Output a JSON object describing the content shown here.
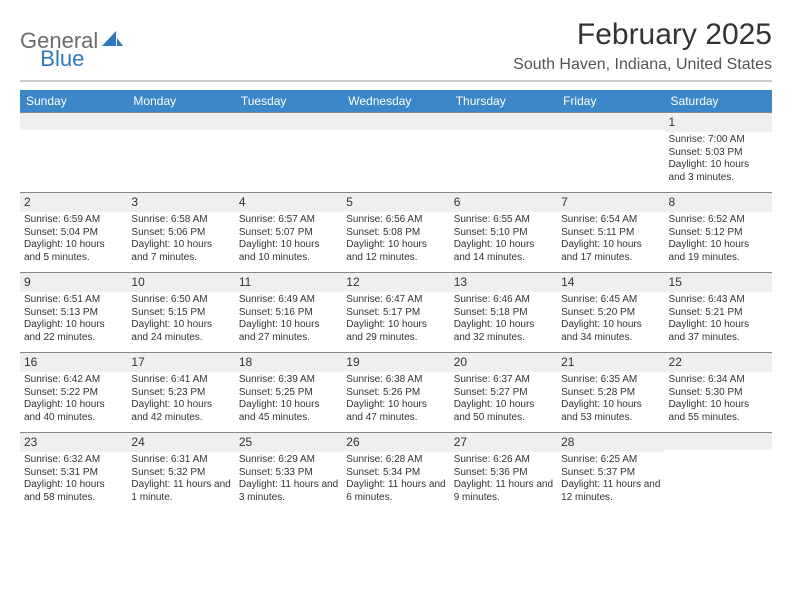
{
  "logo": {
    "word1": "General",
    "word2": "Blue"
  },
  "title": "February 2025",
  "location": "South Haven, Indiana, United States",
  "colors": {
    "header_bar": "#3b87c8",
    "header_text": "#ffffff",
    "daynum_bg": "#efefef",
    "day_border": "#888888",
    "hr": "#cccccc",
    "logo_general": "#6c6c6c",
    "logo_blue": "#2f77bb"
  },
  "daysOfWeek": [
    "Sunday",
    "Monday",
    "Tuesday",
    "Wednesday",
    "Thursday",
    "Friday",
    "Saturday"
  ],
  "weeks": [
    [
      null,
      null,
      null,
      null,
      null,
      null,
      {
        "n": "1",
        "sr": "Sunrise: 7:00 AM",
        "ss": "Sunset: 5:03 PM",
        "dl": "Daylight: 10 hours and 3 minutes."
      }
    ],
    [
      {
        "n": "2",
        "sr": "Sunrise: 6:59 AM",
        "ss": "Sunset: 5:04 PM",
        "dl": "Daylight: 10 hours and 5 minutes."
      },
      {
        "n": "3",
        "sr": "Sunrise: 6:58 AM",
        "ss": "Sunset: 5:06 PM",
        "dl": "Daylight: 10 hours and 7 minutes."
      },
      {
        "n": "4",
        "sr": "Sunrise: 6:57 AM",
        "ss": "Sunset: 5:07 PM",
        "dl": "Daylight: 10 hours and 10 minutes."
      },
      {
        "n": "5",
        "sr": "Sunrise: 6:56 AM",
        "ss": "Sunset: 5:08 PM",
        "dl": "Daylight: 10 hours and 12 minutes."
      },
      {
        "n": "6",
        "sr": "Sunrise: 6:55 AM",
        "ss": "Sunset: 5:10 PM",
        "dl": "Daylight: 10 hours and 14 minutes."
      },
      {
        "n": "7",
        "sr": "Sunrise: 6:54 AM",
        "ss": "Sunset: 5:11 PM",
        "dl": "Daylight: 10 hours and 17 minutes."
      },
      {
        "n": "8",
        "sr": "Sunrise: 6:52 AM",
        "ss": "Sunset: 5:12 PM",
        "dl": "Daylight: 10 hours and 19 minutes."
      }
    ],
    [
      {
        "n": "9",
        "sr": "Sunrise: 6:51 AM",
        "ss": "Sunset: 5:13 PM",
        "dl": "Daylight: 10 hours and 22 minutes."
      },
      {
        "n": "10",
        "sr": "Sunrise: 6:50 AM",
        "ss": "Sunset: 5:15 PM",
        "dl": "Daylight: 10 hours and 24 minutes."
      },
      {
        "n": "11",
        "sr": "Sunrise: 6:49 AM",
        "ss": "Sunset: 5:16 PM",
        "dl": "Daylight: 10 hours and 27 minutes."
      },
      {
        "n": "12",
        "sr": "Sunrise: 6:47 AM",
        "ss": "Sunset: 5:17 PM",
        "dl": "Daylight: 10 hours and 29 minutes."
      },
      {
        "n": "13",
        "sr": "Sunrise: 6:46 AM",
        "ss": "Sunset: 5:18 PM",
        "dl": "Daylight: 10 hours and 32 minutes."
      },
      {
        "n": "14",
        "sr": "Sunrise: 6:45 AM",
        "ss": "Sunset: 5:20 PM",
        "dl": "Daylight: 10 hours and 34 minutes."
      },
      {
        "n": "15",
        "sr": "Sunrise: 6:43 AM",
        "ss": "Sunset: 5:21 PM",
        "dl": "Daylight: 10 hours and 37 minutes."
      }
    ],
    [
      {
        "n": "16",
        "sr": "Sunrise: 6:42 AM",
        "ss": "Sunset: 5:22 PM",
        "dl": "Daylight: 10 hours and 40 minutes."
      },
      {
        "n": "17",
        "sr": "Sunrise: 6:41 AM",
        "ss": "Sunset: 5:23 PM",
        "dl": "Daylight: 10 hours and 42 minutes."
      },
      {
        "n": "18",
        "sr": "Sunrise: 6:39 AM",
        "ss": "Sunset: 5:25 PM",
        "dl": "Daylight: 10 hours and 45 minutes."
      },
      {
        "n": "19",
        "sr": "Sunrise: 6:38 AM",
        "ss": "Sunset: 5:26 PM",
        "dl": "Daylight: 10 hours and 47 minutes."
      },
      {
        "n": "20",
        "sr": "Sunrise: 6:37 AM",
        "ss": "Sunset: 5:27 PM",
        "dl": "Daylight: 10 hours and 50 minutes."
      },
      {
        "n": "21",
        "sr": "Sunrise: 6:35 AM",
        "ss": "Sunset: 5:28 PM",
        "dl": "Daylight: 10 hours and 53 minutes."
      },
      {
        "n": "22",
        "sr": "Sunrise: 6:34 AM",
        "ss": "Sunset: 5:30 PM",
        "dl": "Daylight: 10 hours and 55 minutes."
      }
    ],
    [
      {
        "n": "23",
        "sr": "Sunrise: 6:32 AM",
        "ss": "Sunset: 5:31 PM",
        "dl": "Daylight: 10 hours and 58 minutes."
      },
      {
        "n": "24",
        "sr": "Sunrise: 6:31 AM",
        "ss": "Sunset: 5:32 PM",
        "dl": "Daylight: 11 hours and 1 minute."
      },
      {
        "n": "25",
        "sr": "Sunrise: 6:29 AM",
        "ss": "Sunset: 5:33 PM",
        "dl": "Daylight: 11 hours and 3 minutes."
      },
      {
        "n": "26",
        "sr": "Sunrise: 6:28 AM",
        "ss": "Sunset: 5:34 PM",
        "dl": "Daylight: 11 hours and 6 minutes."
      },
      {
        "n": "27",
        "sr": "Sunrise: 6:26 AM",
        "ss": "Sunset: 5:36 PM",
        "dl": "Daylight: 11 hours and 9 minutes."
      },
      {
        "n": "28",
        "sr": "Sunrise: 6:25 AM",
        "ss": "Sunset: 5:37 PM",
        "dl": "Daylight: 11 hours and 12 minutes."
      },
      null
    ]
  ]
}
